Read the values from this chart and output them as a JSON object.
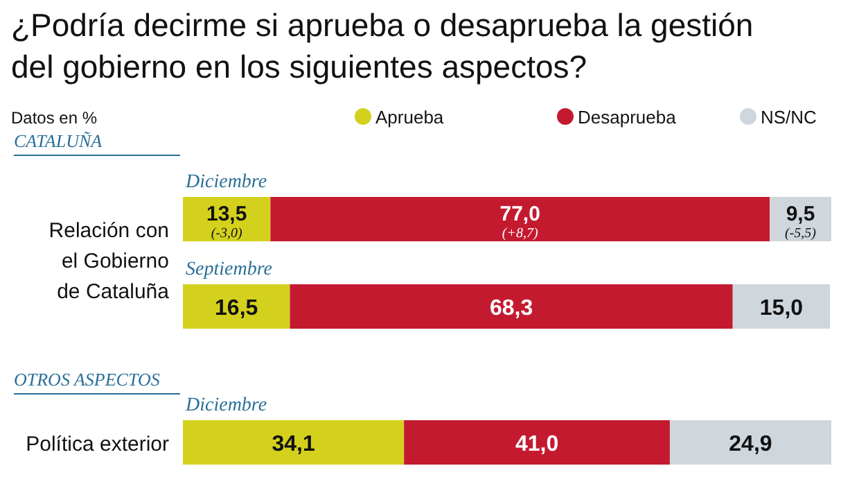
{
  "chart_data": {
    "type": "bar",
    "orientation": "horizontal",
    "stacked": true,
    "title": "¿Podría decirme si aprueba o desaprueba la gestión del gobierno en los siguientes aspectos?",
    "categories": [
      "Diciembre",
      "Septiembre",
      "Diciembre"
    ],
    "series": [
      {
        "name": "Aprueba",
        "color": "#d4d11e",
        "values": [
          13.5,
          16.5,
          34.1
        ],
        "value_labels": [
          "13,5",
          "16,5",
          "34,1"
        ]
      },
      {
        "name": "Desaprueba",
        "color": "#c41a30",
        "values": [
          77.0,
          68.3,
          41.0
        ],
        "value_labels": [
          "77,0",
          "68,3",
          "41,0"
        ]
      },
      {
        "name": "NS/NC",
        "color": "#cfd6dc",
        "values": [
          9.5,
          15.0,
          24.9
        ],
        "value_labels": [
          "9,5",
          "15,0",
          "24,9"
        ]
      }
    ],
    "legend": "top",
    "annotations": [
      "Datos en %",
      "CATALUÑA",
      "OTROS ASPECTOS",
      "Relación con el Gobierno de Cataluña",
      "Política exterior",
      "(-3,0)",
      "(+8,7)",
      "(-5,5)"
    ]
  }
}
